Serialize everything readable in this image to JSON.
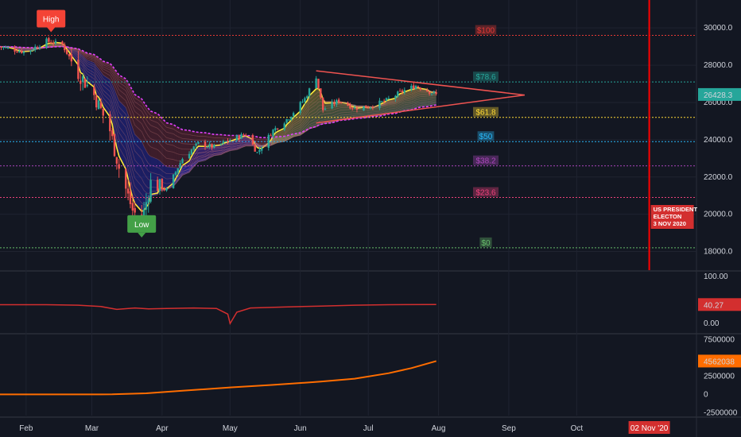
{
  "chart_data": [
    {
      "type": "candlestick",
      "title": "",
      "ylim": [
        17000,
        31500
      ],
      "y_ticks": [
        "18000.0",
        "20000.0",
        "22000.0",
        "24000.0",
        "26000.0",
        "28000.0",
        "30000.0"
      ],
      "y_tick_values": [
        18000,
        20000,
        22000,
        24000,
        26000,
        28000,
        30000
      ],
      "x_ticks": [
        "Feb",
        "Mar",
        "Apr",
        "May",
        "Jun",
        "Jul",
        "Aug",
        "Sep",
        "Oct"
      ],
      "last_price": "26428.3",
      "last_price_value": 26428.3,
      "price_path": [
        {
          "x": "2020-01-20",
          "y": 29000
        },
        {
          "x": "2020-02-01",
          "y": 28700
        },
        {
          "x": "2020-02-10",
          "y": 29300
        },
        {
          "x": "2020-02-17",
          "y": 29100
        },
        {
          "x": "2020-02-24",
          "y": 27600
        },
        {
          "x": "2020-03-02",
          "y": 26400
        },
        {
          "x": "2020-03-09",
          "y": 24500
        },
        {
          "x": "2020-03-13",
          "y": 22500
        },
        {
          "x": "2020-03-19",
          "y": 20200
        },
        {
          "x": "2020-03-23",
          "y": 19600
        },
        {
          "x": "2020-03-27",
          "y": 21700
        },
        {
          "x": "2020-04-03",
          "y": 21300
        },
        {
          "x": "2020-04-10",
          "y": 23000
        },
        {
          "x": "2020-04-17",
          "y": 23800
        },
        {
          "x": "2020-04-24",
          "y": 23600
        },
        {
          "x": "2020-05-01",
          "y": 24000
        },
        {
          "x": "2020-05-08",
          "y": 24300
        },
        {
          "x": "2020-05-13",
          "y": 23300
        },
        {
          "x": "2020-05-20",
          "y": 24500
        },
        {
          "x": "2020-05-27",
          "y": 25200
        },
        {
          "x": "2020-06-03",
          "y": 26200
        },
        {
          "x": "2020-06-08",
          "y": 27400
        },
        {
          "x": "2020-06-11",
          "y": 25600
        },
        {
          "x": "2020-06-18",
          "y": 26100
        },
        {
          "x": "2020-06-25",
          "y": 25700
        },
        {
          "x": "2020-07-02",
          "y": 25800
        },
        {
          "x": "2020-07-09",
          "y": 26100
        },
        {
          "x": "2020-07-16",
          "y": 26600
        },
        {
          "x": "2020-07-22",
          "y": 26900
        },
        {
          "x": "2020-07-31",
          "y": 26428.3
        }
      ],
      "fib_levels": [
        {
          "label": "$100",
          "value": 29600,
          "color": "#e53935"
        },
        {
          "label": "$78.6",
          "value": 27100,
          "color": "#26a69a"
        },
        {
          "label": "$61.8",
          "value": 25200,
          "color": "#fdd835"
        },
        {
          "label": "$50",
          "value": 23900,
          "color": "#29b6f6"
        },
        {
          "label": "$38.2",
          "value": 22600,
          "color": "#ab47bc"
        },
        {
          "label": "$23.6",
          "value": 20900,
          "color": "#ec407a"
        },
        {
          "label": "$0",
          "value": 18200,
          "color": "#66bb6a"
        }
      ],
      "triangle": {
        "upper": [
          {
            "x": "2020-06-08",
            "y": 27700
          },
          {
            "x": "2020-09-08",
            "y": 26400
          }
        ],
        "lower": [
          {
            "x": "2020-06-08",
            "y": 24900
          },
          {
            "x": "2020-09-08",
            "y": 26400
          }
        ]
      },
      "high_label": "High",
      "high_point": {
        "x": "2020-02-12",
        "y": 29600
      },
      "low_label": "Low",
      "low_point": {
        "x": "2020-03-23",
        "y": 18500
      },
      "event_line_date": "2020-11-02",
      "event_label": "US PRESIDENT\nELECTON\n3 NOV 2020",
      "colors": {
        "up": "#26a69a",
        "down": "#ef5350",
        "event": "#ff0000"
      }
    },
    {
      "type": "line",
      "ylim": [
        -20,
        110
      ],
      "y_ticks": [
        "100.00",
        "40.27",
        "0.00"
      ],
      "y_tick_values": [
        100,
        40.27,
        0
      ],
      "current_value": "40.27",
      "series": [
        {
          "values": [
            {
              "x": "2020-01-20",
              "y": 40
            },
            {
              "x": "2020-02-10",
              "y": 40
            },
            {
              "x": "2020-02-24",
              "y": 39
            },
            {
              "x": "2020-03-05",
              "y": 36
            },
            {
              "x": "2020-03-12",
              "y": 30
            },
            {
              "x": "2020-03-20",
              "y": 33
            },
            {
              "x": "2020-03-26",
              "y": 31
            },
            {
              "x": "2020-04-03",
              "y": 32
            },
            {
              "x": "2020-04-15",
              "y": 33
            },
            {
              "x": "2020-04-25",
              "y": 32
            },
            {
              "x": "2020-04-30",
              "y": 20
            },
            {
              "x": "2020-05-01",
              "y": 0
            },
            {
              "x": "2020-05-04",
              "y": 24
            },
            {
              "x": "2020-05-10",
              "y": 33
            },
            {
              "x": "2020-05-25",
              "y": 35
            },
            {
              "x": "2020-06-10",
              "y": 37
            },
            {
              "x": "2020-06-25",
              "y": 39
            },
            {
              "x": "2020-07-10",
              "y": 40
            },
            {
              "x": "2020-07-31",
              "y": 40.27
            }
          ]
        }
      ],
      "colors": {
        "line": "#d32f2f"
      }
    },
    {
      "type": "line",
      "ylim": [
        -2900000,
        8200000
      ],
      "y_ticks": [
        "7500000",
        "4562038",
        "2500000",
        "0",
        "-2500000"
      ],
      "y_tick_values": [
        7500000,
        4562038,
        2500000,
        0,
        -2500000
      ],
      "current_value": "4562038",
      "series": [
        {
          "values": [
            {
              "x": "2020-01-20",
              "y": 0
            },
            {
              "x": "2020-02-15",
              "y": 0
            },
            {
              "x": "2020-03-10",
              "y": 10000
            },
            {
              "x": "2020-03-25",
              "y": 150000
            },
            {
              "x": "2020-04-10",
              "y": 500000
            },
            {
              "x": "2020-05-01",
              "y": 950000
            },
            {
              "x": "2020-05-20",
              "y": 1300000
            },
            {
              "x": "2020-06-10",
              "y": 1750000
            },
            {
              "x": "2020-06-25",
              "y": 2150000
            },
            {
              "x": "2020-07-10",
              "y": 2900000
            },
            {
              "x": "2020-07-20",
              "y": 3600000
            },
            {
              "x": "2020-07-31",
              "y": 4562038
            }
          ]
        }
      ],
      "colors": {
        "line": "#ff6d00"
      }
    }
  ],
  "x_axis": {
    "labels": [
      "Feb",
      "Mar",
      "Apr",
      "May",
      "Jun",
      "Jul",
      "Aug",
      "Sep",
      "Oct"
    ],
    "dates": [
      "2020-02-01",
      "2020-03-01",
      "2020-04-01",
      "2020-05-01",
      "2020-06-01",
      "2020-07-01",
      "2020-08-01",
      "2020-09-01",
      "2020-10-01"
    ],
    "event_badge": "02 Nov '20"
  }
}
